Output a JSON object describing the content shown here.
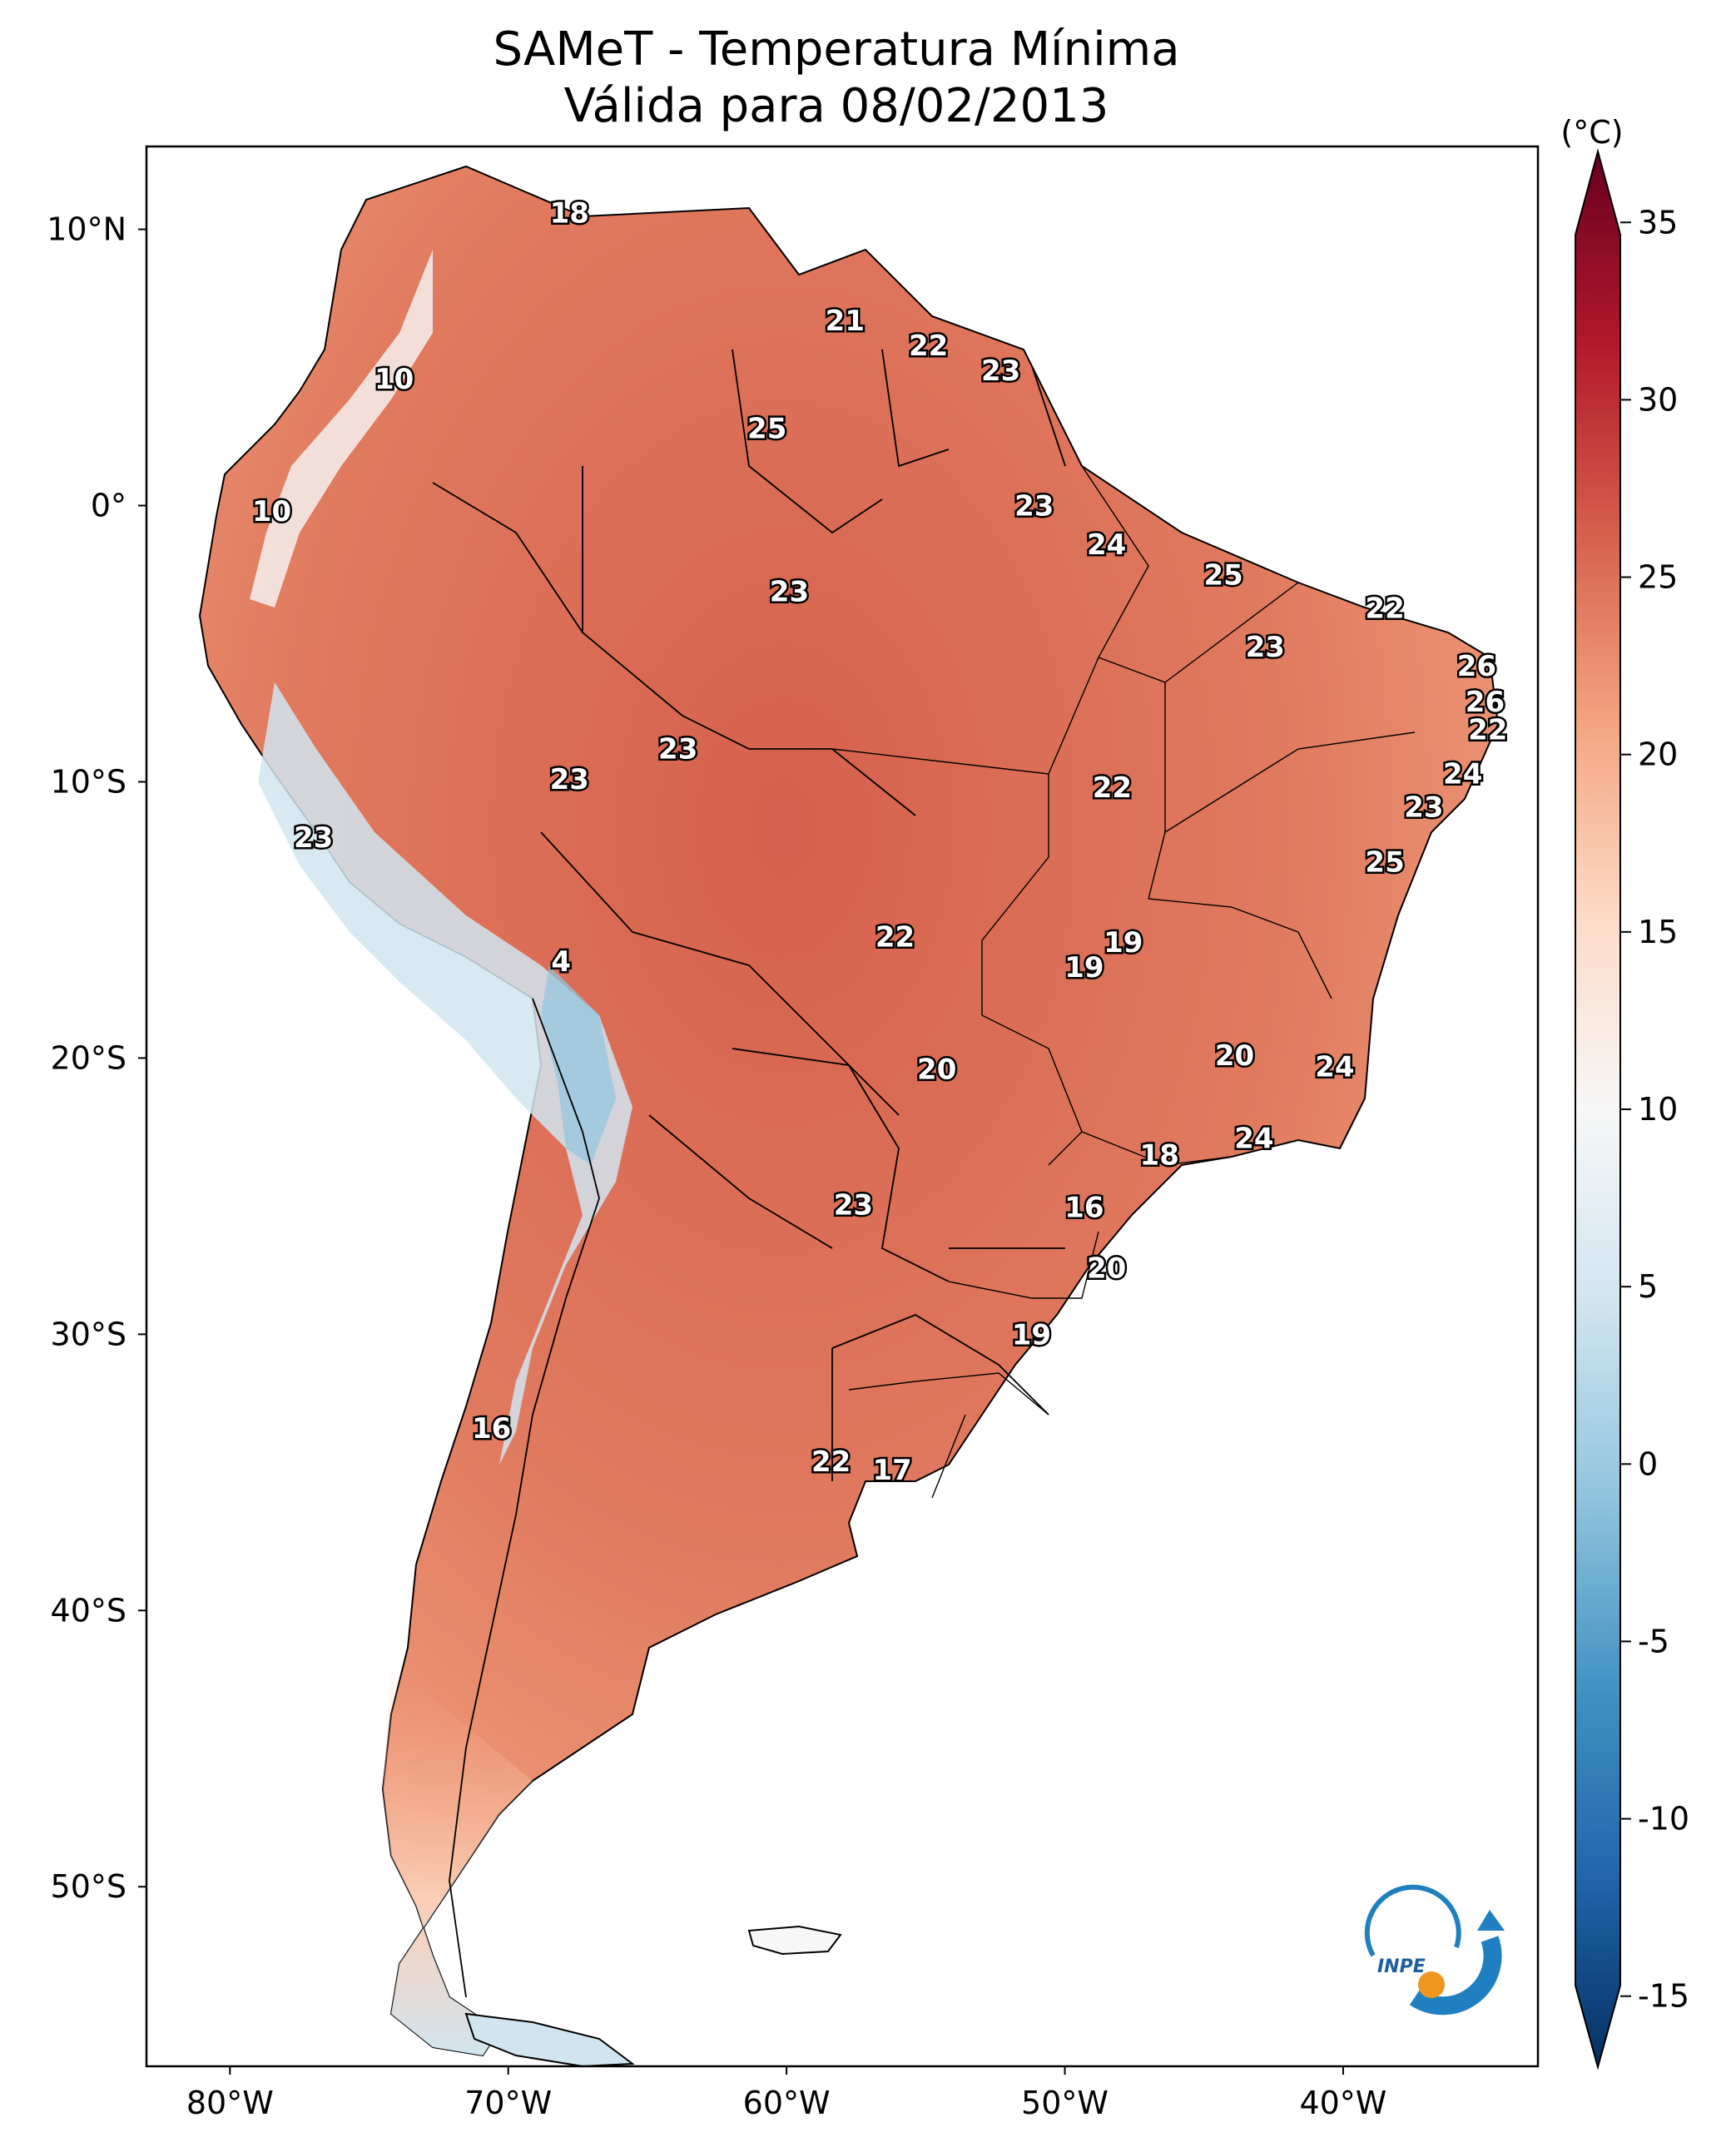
{
  "title": {
    "line1": "SAMeT - Temperatura Mínima",
    "line2": "Válida para 08/02/2013"
  },
  "map": {
    "lat_labels": [
      "10°N",
      "0°",
      "10°S",
      "20°S",
      "30°S",
      "40°S",
      "50°S"
    ],
    "lon_labels": [
      "80°W",
      "70°W",
      "60°W",
      "50°W",
      "40°W"
    ],
    "extent": {
      "lon_min": -83,
      "lon_max": -33,
      "lat_min": -56.5,
      "lat_max": 13
    }
  },
  "colorbar": {
    "unit": "(°C)",
    "ticks": [
      "35",
      "30",
      "25",
      "20",
      "15",
      "10",
      "5",
      "0",
      "-5",
      "-10",
      "-15"
    ],
    "min": -17,
    "max": 37,
    "colors": [
      "#053061",
      "#2166ac",
      "#4393c3",
      "#92c5de",
      "#d1e5f0",
      "#f7f7f7",
      "#fddbc7",
      "#f4a582",
      "#d6604d",
      "#b2182b",
      "#67001f"
    ]
  },
  "stations": [
    {
      "label": "18",
      "lon": -67.8,
      "lat": 10.6
    },
    {
      "label": "21",
      "lon": -57.9,
      "lat": 6.7
    },
    {
      "label": "22",
      "lon": -54.9,
      "lat": 5.8
    },
    {
      "label": "23",
      "lon": -52.3,
      "lat": 4.9
    },
    {
      "label": "10",
      "lon": -74.1,
      "lat": 4.6
    },
    {
      "label": "25",
      "lon": -60.7,
      "lat": 2.8
    },
    {
      "label": "10",
      "lon": -78.5,
      "lat": -0.2
    },
    {
      "label": "23",
      "lon": -51.1,
      "lat": 0.0
    },
    {
      "label": "24",
      "lon": -48.5,
      "lat": -1.4
    },
    {
      "label": "25",
      "lon": -44.3,
      "lat": -2.5
    },
    {
      "label": "22",
      "lon": -38.5,
      "lat": -3.7
    },
    {
      "label": "23",
      "lon": -59.9,
      "lat": -3.1
    },
    {
      "label": "23",
      "lon": -42.8,
      "lat": -5.1
    },
    {
      "label": "26",
      "lon": -35.2,
      "lat": -5.8
    },
    {
      "label": "26",
      "lon": -34.9,
      "lat": -7.1
    },
    {
      "label": "22",
      "lon": -34.8,
      "lat": -8.1
    },
    {
      "label": "23",
      "lon": -63.9,
      "lat": -8.8
    },
    {
      "label": "23",
      "lon": -67.8,
      "lat": -9.9
    },
    {
      "label": "24",
      "lon": -35.7,
      "lat": -9.7
    },
    {
      "label": "22",
      "lon": -48.3,
      "lat": -10.2
    },
    {
      "label": "23",
      "lon": -37.1,
      "lat": -10.9
    },
    {
      "label": "23",
      "lon": -77.0,
      "lat": -12.0
    },
    {
      "label": "25",
      "lon": -38.5,
      "lat": -12.9
    },
    {
      "label": "22",
      "lon": -56.1,
      "lat": -15.6
    },
    {
      "label": "19",
      "lon": -47.9,
      "lat": -15.8
    },
    {
      "label": "19",
      "lon": -49.3,
      "lat": -16.7
    },
    {
      "label": "4",
      "lon": -68.1,
      "lat": -16.5
    },
    {
      "label": "20",
      "lon": -54.6,
      "lat": -20.4
    },
    {
      "label": "20",
      "lon": -43.9,
      "lat": -19.9
    },
    {
      "label": "24",
      "lon": -40.3,
      "lat": -20.3
    },
    {
      "label": "24",
      "lon": -43.2,
      "lat": -22.9
    },
    {
      "label": "18",
      "lon": -46.6,
      "lat": -23.5
    },
    {
      "label": "23",
      "lon": -57.6,
      "lat": -25.3
    },
    {
      "label": "16",
      "lon": -49.3,
      "lat": -25.4
    },
    {
      "label": "20",
      "lon": -48.5,
      "lat": -27.6
    },
    {
      "label": "19",
      "lon": -51.2,
      "lat": -30.0
    },
    {
      "label": "16",
      "lon": -70.6,
      "lat": -33.4
    },
    {
      "label": "22",
      "lon": -58.4,
      "lat": -34.6
    },
    {
      "label": "17",
      "lon": -56.2,
      "lat": -34.9
    }
  ],
  "logo": {
    "text": "INPE"
  }
}
